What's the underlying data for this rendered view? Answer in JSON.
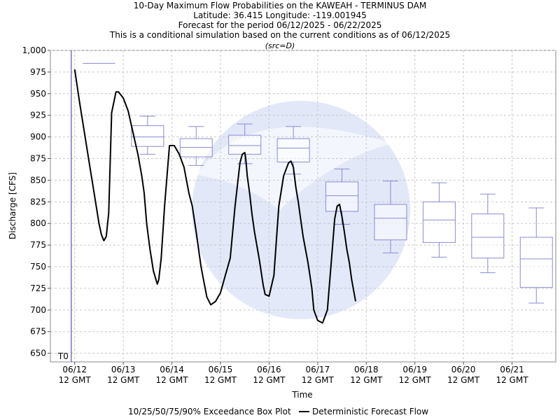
{
  "chart_data": {
    "type": "box-and-line",
    "title_lines": [
      "10-Day Maximum Flow Probabilities on the KAWEAH - TERMINUS DAM",
      "Latitude: 36.415 Longitude: -119.001945",
      "Forecast for the period 06/12/2025 - 06/22/2025",
      "This is a conditional simulation based on the current conditions as of 06/12/2025"
    ],
    "subtitle": "(src=D)",
    "xlabel": "Time",
    "ylabel": "Discharge [CFS]",
    "ylim": [
      640,
      1000
    ],
    "y_ticks": [
      650,
      675,
      700,
      725,
      750,
      775,
      800,
      825,
      850,
      875,
      900,
      925,
      950,
      975,
      1000
    ],
    "y_tick_labels": [
      "650",
      "675",
      "700",
      "725",
      "750",
      "775",
      "800",
      "825",
      "850",
      "875",
      "900",
      "925",
      "950",
      "975",
      "1,000"
    ],
    "xlim_days": [
      -0.5,
      9.9
    ],
    "x_ticks": [
      {
        "day": 0,
        "date": "06/12",
        "time": "12 GMT"
      },
      {
        "day": 1,
        "date": "06/13",
        "time": "12 GMT"
      },
      {
        "day": 2,
        "date": "06/14",
        "time": "12 GMT"
      },
      {
        "day": 3,
        "date": "06/15",
        "time": "12 GMT"
      },
      {
        "day": 4,
        "date": "06/16",
        "time": "12 GMT"
      },
      {
        "day": 5,
        "date": "06/17",
        "time": "12 GMT"
      },
      {
        "day": 6,
        "date": "06/18",
        "time": "12 GMT"
      },
      {
        "day": 7,
        "date": "06/19",
        "time": "12 GMT"
      },
      {
        "day": 8,
        "date": "06/20",
        "time": "12 GMT"
      },
      {
        "day": 9,
        "date": "06/21",
        "time": "12 GMT"
      }
    ],
    "t0_label": "T0",
    "t0_day": -0.07,
    "grid": true,
    "boxes": [
      {
        "day": 0.5,
        "p10": 985,
        "p25": 985,
        "p50": 985,
        "p75": 985,
        "p90": 985
      },
      {
        "day": 1.5,
        "p10": 880,
        "p25": 889,
        "p50": 900,
        "p75": 913,
        "p90": 924
      },
      {
        "day": 2.5,
        "p10": 867,
        "p25": 877,
        "p50": 888,
        "p75": 898,
        "p90": 912
      },
      {
        "day": 3.5,
        "p10": 869,
        "p25": 880,
        "p50": 890,
        "p75": 902,
        "p90": 915
      },
      {
        "day": 4.5,
        "p10": 857,
        "p25": 871,
        "p50": 887,
        "p75": 898,
        "p90": 912
      },
      {
        "day": 5.5,
        "p10": 799,
        "p25": 814,
        "p50": 832,
        "p75": 848,
        "p90": 863
      },
      {
        "day": 6.5,
        "p10": 766,
        "p25": 781,
        "p50": 806,
        "p75": 822,
        "p90": 849
      },
      {
        "day": 7.5,
        "p10": 761,
        "p25": 778,
        "p50": 804,
        "p75": 825,
        "p90": 847
      },
      {
        "day": 8.5,
        "p10": 743,
        "p25": 760,
        "p50": 784,
        "p75": 811,
        "p90": 834
      },
      {
        "day": 9.5,
        "p10": 708,
        "p25": 726,
        "p50": 759,
        "p75": 784,
        "p90": 818
      }
    ],
    "series": [
      {
        "name": "Deterministic Forecast Flow",
        "x": [
          0.0,
          0.1,
          0.2,
          0.3,
          0.4,
          0.5,
          0.55,
          0.6,
          0.65,
          0.7,
          0.76,
          0.85,
          0.9,
          1.0,
          1.1,
          1.2,
          1.3,
          1.38,
          1.43,
          1.48,
          1.55,
          1.62,
          1.7,
          1.73,
          1.78,
          1.85,
          1.95,
          2.05,
          2.15,
          2.25,
          2.3,
          2.35,
          2.42,
          2.5,
          2.55,
          2.6,
          2.65,
          2.72,
          2.8,
          2.9,
          3.0,
          3.1,
          3.2,
          3.3,
          3.4,
          3.45,
          3.5,
          3.52,
          3.55,
          3.6,
          3.65,
          3.7,
          3.8,
          3.88,
          3.92,
          4.0,
          4.1,
          4.2,
          4.3,
          4.4,
          4.45,
          4.5,
          4.55,
          4.6,
          4.65,
          4.7,
          4.8,
          4.88,
          4.92,
          5.0,
          5.1,
          5.2,
          5.3,
          5.35,
          5.4,
          5.45,
          5.5,
          5.55,
          5.6,
          5.65,
          5.7,
          5.78
        ],
        "y": [
          978,
          940,
          905,
          870,
          835,
          800,
          787,
          780,
          785,
          812,
          928,
          952,
          952,
          945,
          930,
          905,
          880,
          855,
          835,
          800,
          770,
          745,
          730,
          735,
          760,
          820,
          890,
          890,
          880,
          865,
          850,
          835,
          820,
          790,
          770,
          750,
          735,
          715,
          706,
          710,
          720,
          740,
          760,
          820,
          870,
          880,
          882,
          875,
          855,
          835,
          810,
          790,
          758,
          728,
          718,
          716,
          740,
          820,
          855,
          870,
          872,
          865,
          842,
          825,
          805,
          785,
          755,
          725,
          700,
          688,
          685,
          700,
          770,
          805,
          820,
          822,
          808,
          790,
          770,
          755,
          735,
          710
        ]
      }
    ],
    "legend": {
      "placement": "bottom",
      "box_label": "10/25/50/75/90% Exceedance Box Plot",
      "line_label": "Deterministic Forecast Flow"
    },
    "colors": {
      "box": "#8a8ad6",
      "line": "#000000",
      "t0_line": "#3030a0",
      "grid": "#c8c8c8"
    }
  }
}
